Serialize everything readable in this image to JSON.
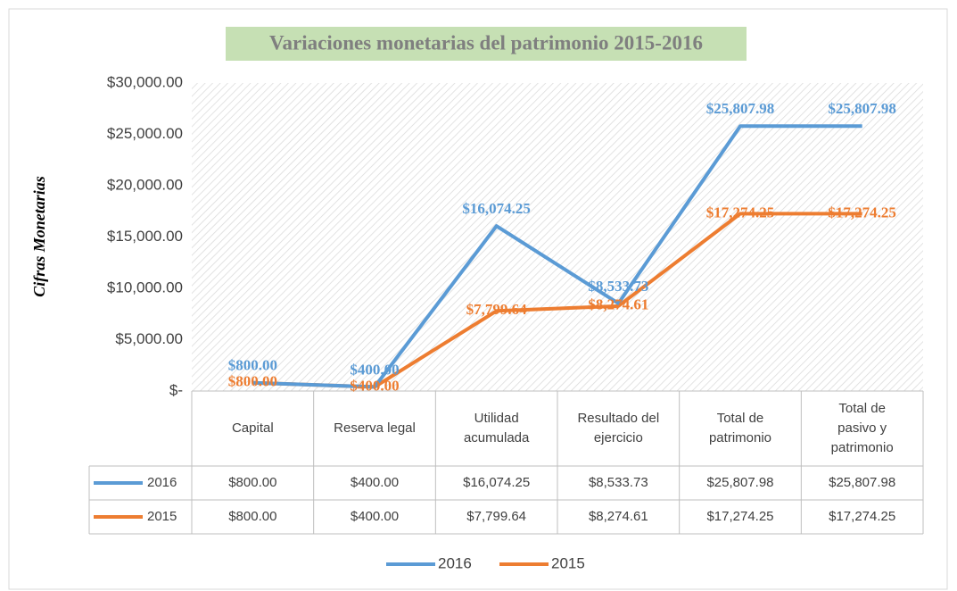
{
  "chart_data": {
    "type": "line",
    "title": "Variaciones monetarias del patrimonio 2015-2016",
    "y_label": "Cifras Monetarias",
    "categories": [
      "Capital",
      "Reserva legal",
      "Utilidad acumulada",
      "Resultado del ejercicio",
      "Total de patrimonio",
      "Total de pasivo y patrimonio"
    ],
    "series": [
      {
        "name": "2016",
        "color": "#5b9bd5",
        "values": [
          800,
          400,
          16074.25,
          8533.73,
          25807.98,
          25807.98
        ],
        "value_labels": [
          "$800.00",
          "$400.00",
          "$16,074.25",
          "$8,533.73",
          "$25,807.98",
          "$25,807.98"
        ]
      },
      {
        "name": "2015",
        "color": "#ed7d31",
        "values": [
          800,
          400,
          7799.64,
          8274.61,
          17274.25,
          17274.25
        ],
        "value_labels": [
          "$800.00",
          "$400.00",
          "$7,799.64",
          "$8,274.61",
          "$17,274.25",
          "$17,274.25"
        ]
      }
    ],
    "ylim": [
      0,
      30000
    ],
    "yticks": [
      {
        "value": 0,
        "label": "$-"
      },
      {
        "value": 5000,
        "label": "$5,000.00"
      },
      {
        "value": 10000,
        "label": "$10,000.00"
      },
      {
        "value": 15000,
        "label": "$15,000.00"
      },
      {
        "value": 20000,
        "label": "$20,000.00"
      },
      {
        "value": 25000,
        "label": "$25,000.00"
      },
      {
        "value": 30000,
        "label": "$30,000.00"
      }
    ],
    "grid": false,
    "legend": "bottom"
  }
}
